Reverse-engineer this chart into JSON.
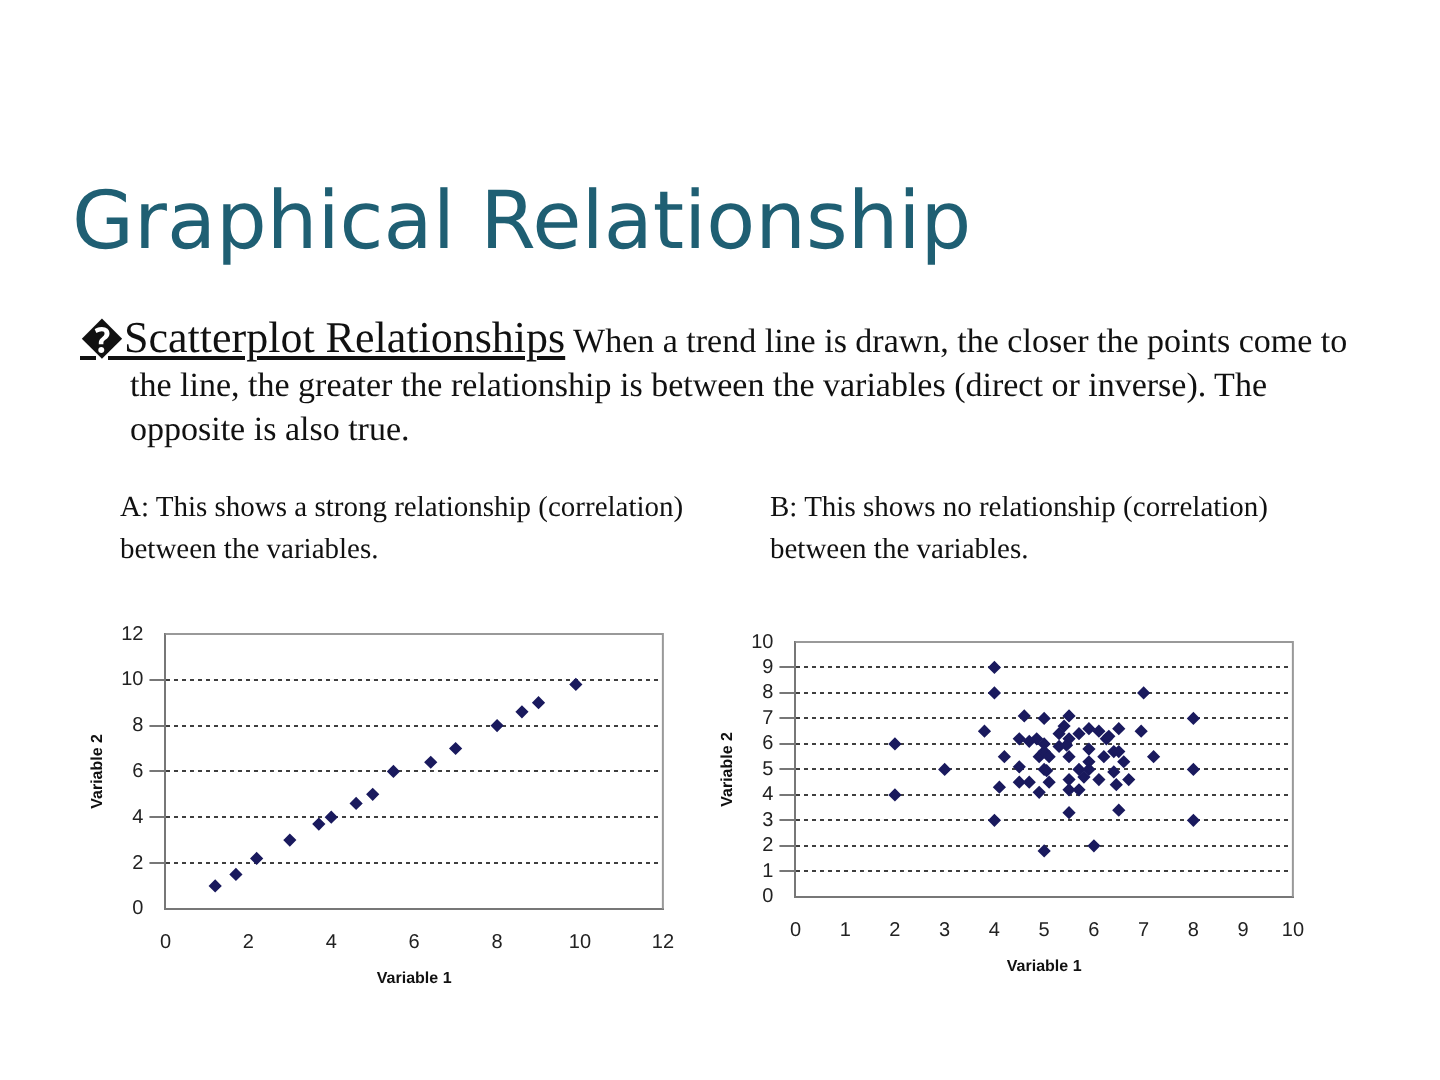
{
  "chart_data": [
    {
      "type": "other",
      "title": "Graphical Relationship",
      "annotations": [
        "�Scatterplot Relationships",
        "When a trend line is drawn, the closer the points come to the line, the greater the relationship is between the variables (direct or inverse).  The opposite is also true."
      ]
    },
    {
      "type": "scatter",
      "title": "A:  This shows a strong relationship (correlation) between the variables.",
      "xlabel": "Variable 1",
      "ylabel": "Variable 2",
      "xlim": [
        0,
        12
      ],
      "xticks": [
        0,
        2,
        4,
        6,
        8,
        10,
        12
      ],
      "ylim": [
        0,
        12
      ],
      "yticks": [
        0,
        2,
        4,
        6,
        8,
        10,
        12
      ],
      "grid": "y",
      "marker": "diamond",
      "series": [
        {
          "color": "#1a1a5e",
          "x": [
            1.2,
            1.7,
            2.2,
            3,
            3.7,
            4,
            4.6,
            5,
            5.5,
            6.4,
            7,
            8,
            8.6,
            9,
            9.9
          ],
          "values": [
            1,
            1.5,
            2.2,
            3,
            3.7,
            4,
            4.6,
            5,
            6,
            6.4,
            7,
            8,
            8.6,
            9,
            9.8
          ]
        }
      ]
    },
    {
      "type": "scatter",
      "title": "B:  This shows no relationship (correlation) between the variables.",
      "xlabel": "Variable 1",
      "ylabel": "Variable 2",
      "xlim": [
        0,
        10
      ],
      "xticks": [
        0,
        1,
        2,
        3,
        4,
        5,
        6,
        7,
        8,
        9,
        10
      ],
      "ylim": [
        0,
        10
      ],
      "yticks": [
        0,
        1,
        2,
        3,
        4,
        5,
        6,
        7,
        8,
        9,
        10
      ],
      "grid": "y",
      "marker": "diamond",
      "series": [
        {
          "color": "#1a1a5e",
          "x": [
            4,
            4,
            7,
            8,
            8,
            8,
            2,
            2,
            3,
            4,
            5,
            6,
            3.8,
            4.2,
            4.1,
            4.6,
            5,
            5.5,
            4.5,
            4.7,
            4.85,
            4.5,
            4.5,
            4.7,
            4.9,
            4.9,
            5,
            5,
            5,
            5.05,
            5.1,
            5.1,
            5.3,
            5.4,
            5.3,
            5.45,
            5.5,
            5.5,
            5.5,
            5.5,
            5.5,
            5.7,
            5.7,
            5.7,
            5.8,
            5.9,
            5.9,
            5.9,
            5.9,
            6.1,
            6.1,
            6.2,
            6.25,
            6.3,
            6.4,
            6.4,
            6.45,
            6.5,
            6.5,
            6.5,
            6.6,
            6.7,
            6.95,
            7.2
          ],
          "values": [
            9,
            8,
            8,
            7,
            5,
            3,
            6,
            4,
            5,
            3,
            1.8,
            2,
            6.5,
            5.5,
            4.3,
            7.1,
            7,
            7.1,
            6.2,
            6.1,
            6.2,
            5.1,
            4.5,
            4.5,
            5.5,
            4.1,
            6,
            5.7,
            5,
            4.95,
            5.5,
            4.5,
            6.4,
            6.7,
            5.9,
            5.95,
            6.2,
            5.5,
            4.6,
            4.2,
            3.3,
            6.4,
            5,
            4.2,
            4.7,
            5,
            5.8,
            6.6,
            5.3,
            6.5,
            4.6,
            5.5,
            6.2,
            6.3,
            5.7,
            4.9,
            4.4,
            5.7,
            6.6,
            3.4,
            5.3,
            4.6,
            6.5,
            5.5
          ]
        }
      ]
    }
  ]
}
